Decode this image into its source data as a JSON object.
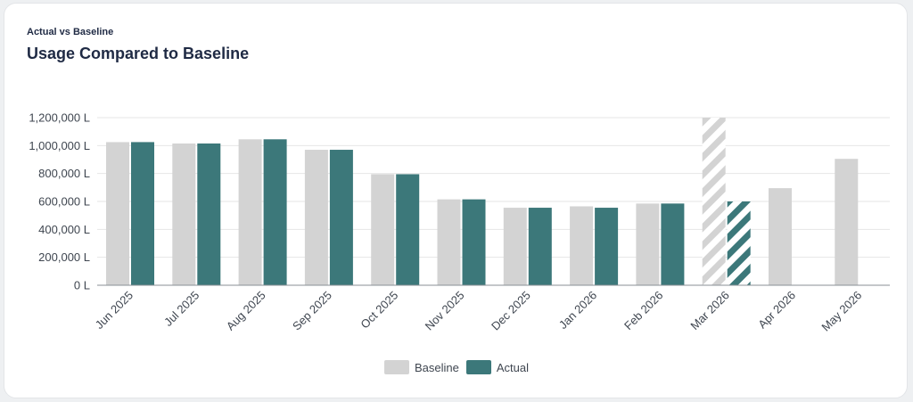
{
  "header": {
    "eyebrow": "Actual vs Baseline",
    "title": "Usage Compared to Baseline"
  },
  "colors": {
    "baseline": "#d3d3d3",
    "actual": "#3c787a",
    "grid": "#e6e6e6",
    "axis": "#8a8f96"
  },
  "legend": [
    {
      "name": "Baseline",
      "color_key": "baseline"
    },
    {
      "name": "Actual",
      "color_key": "actual"
    }
  ],
  "chart_data": {
    "type": "bar",
    "categories": [
      "Jun 2025",
      "Jul 2025",
      "Aug 2025",
      "Sep 2025",
      "Oct 2025",
      "Nov 2025",
      "Dec 2025",
      "Jan 2026",
      "Feb 2026",
      "Mar 2026",
      "Apr 2026",
      "May 2026"
    ],
    "yticks": [
      "0 L",
      "200,000 L",
      "400,000 L",
      "600,000 L",
      "800,000 L",
      "1,000,000 L",
      "1,200,000 L"
    ],
    "ylim": [
      0,
      1200000
    ],
    "grid": true,
    "legend_position": "bottom-center",
    "hatched_category": "Mar 2026",
    "series": [
      {
        "name": "Baseline",
        "values": [
          1025000,
          1015000,
          1045000,
          970000,
          795000,
          615000,
          555000,
          565000,
          585000,
          1200000,
          695000,
          905000
        ]
      },
      {
        "name": "Actual",
        "values": [
          1025000,
          1015000,
          1045000,
          970000,
          795000,
          615000,
          555000,
          555000,
          585000,
          600000,
          null,
          null
        ]
      }
    ]
  }
}
